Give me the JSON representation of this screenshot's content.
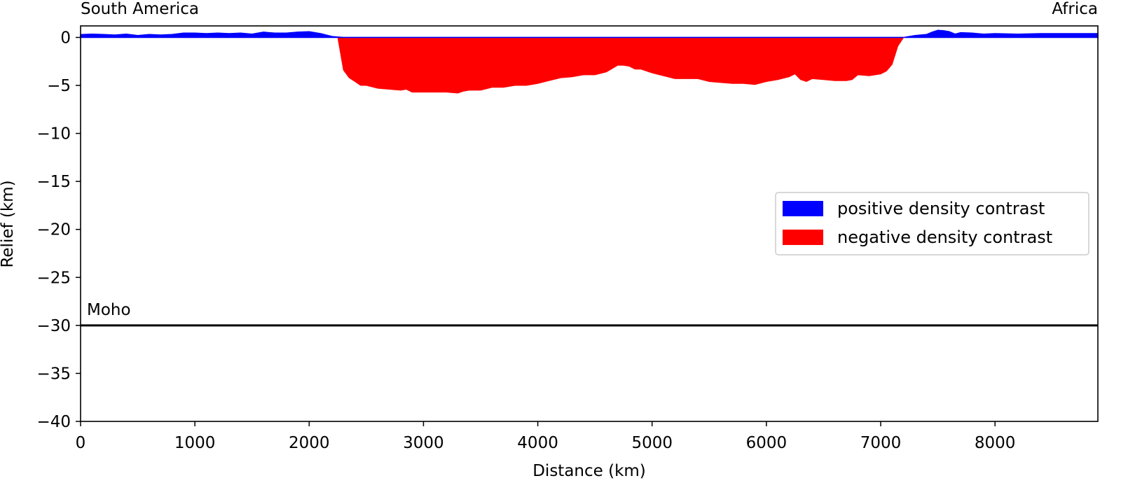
{
  "chart_data": {
    "type": "area",
    "xlabel": "Distance (km)",
    "ylabel": "Relief (km)",
    "xlim": [
      0,
      8900
    ],
    "ylim": [
      -40,
      1.2
    ],
    "xticks": [
      0,
      1000,
      2000,
      3000,
      4000,
      5000,
      6000,
      7000,
      8000
    ],
    "yticks": [
      0,
      -5,
      -10,
      -15,
      -20,
      -25,
      -30,
      -35,
      -40
    ],
    "xtick_labels": [
      "0",
      "1000",
      "2000",
      "3000",
      "4000",
      "5000",
      "6000",
      "7000",
      "8000"
    ],
    "ytick_labels": [
      "0",
      "−5",
      "−10",
      "−15",
      "−20",
      "−25",
      "−30",
      "−35",
      "−40"
    ],
    "grid": false,
    "legend_position": "center-right",
    "annotations": {
      "left_end": "South America",
      "right_end": "Africa",
      "moho": "Moho"
    },
    "moho_depth": -30,
    "series": [
      {
        "name": "positive density contrast",
        "color": "#0000ff",
        "x": [
          0,
          100,
          200,
          300,
          400,
          500,
          600,
          700,
          800,
          900,
          1000,
          1100,
          1200,
          1300,
          1400,
          1500,
          1600,
          1700,
          1800,
          1900,
          2000,
          2100,
          2200,
          2300,
          7200,
          7300,
          7400,
          7450,
          7500,
          7550,
          7600,
          7650,
          7700,
          7800,
          7900,
          8000,
          8200,
          8400,
          8600,
          8800,
          8900
        ],
        "values": [
          0.3,
          0.35,
          0.3,
          0.25,
          0.35,
          0.2,
          0.3,
          0.25,
          0.3,
          0.45,
          0.45,
          0.4,
          0.45,
          0.4,
          0.45,
          0.35,
          0.55,
          0.45,
          0.45,
          0.55,
          0.6,
          0.4,
          0.1,
          0.0,
          0.0,
          0.2,
          0.3,
          0.55,
          0.75,
          0.7,
          0.6,
          0.35,
          0.5,
          0.45,
          0.35,
          0.4,
          0.35,
          0.4,
          0.4,
          0.4,
          0.4
        ]
      },
      {
        "name": "negative density contrast",
        "color": "#ff0000",
        "x": [
          2250,
          2300,
          2350,
          2400,
          2450,
          2500,
          2600,
          2700,
          2800,
          2850,
          2900,
          3000,
          3100,
          3200,
          3300,
          3350,
          3400,
          3500,
          3600,
          3700,
          3800,
          3900,
          4000,
          4100,
          4200,
          4300,
          4400,
          4500,
          4600,
          4700,
          4750,
          4800,
          4850,
          4900,
          5000,
          5100,
          5200,
          5300,
          5400,
          5500,
          5600,
          5700,
          5800,
          5900,
          6000,
          6100,
          6200,
          6250,
          6300,
          6350,
          6400,
          6500,
          6600,
          6700,
          6750,
          6800,
          6900,
          7000,
          7050,
          7100,
          7150,
          7200
        ],
        "values": [
          0,
          -3.4,
          -4.2,
          -4.6,
          -5.0,
          -5.0,
          -5.3,
          -5.4,
          -5.5,
          -5.4,
          -5.7,
          -5.7,
          -5.7,
          -5.7,
          -5.8,
          -5.6,
          -5.5,
          -5.5,
          -5.2,
          -5.2,
          -5.0,
          -5.0,
          -4.8,
          -4.5,
          -4.2,
          -4.1,
          -3.9,
          -3.9,
          -3.6,
          -2.9,
          -2.9,
          -3.0,
          -3.3,
          -3.3,
          -3.7,
          -4.0,
          -4.3,
          -4.3,
          -4.3,
          -4.6,
          -4.7,
          -4.8,
          -4.8,
          -4.9,
          -4.6,
          -4.4,
          -4.1,
          -3.8,
          -4.4,
          -4.6,
          -4.3,
          -4.4,
          -4.5,
          -4.5,
          -4.4,
          -3.9,
          -4.0,
          -3.8,
          -3.5,
          -2.8,
          -0.9,
          0
        ]
      }
    ]
  }
}
